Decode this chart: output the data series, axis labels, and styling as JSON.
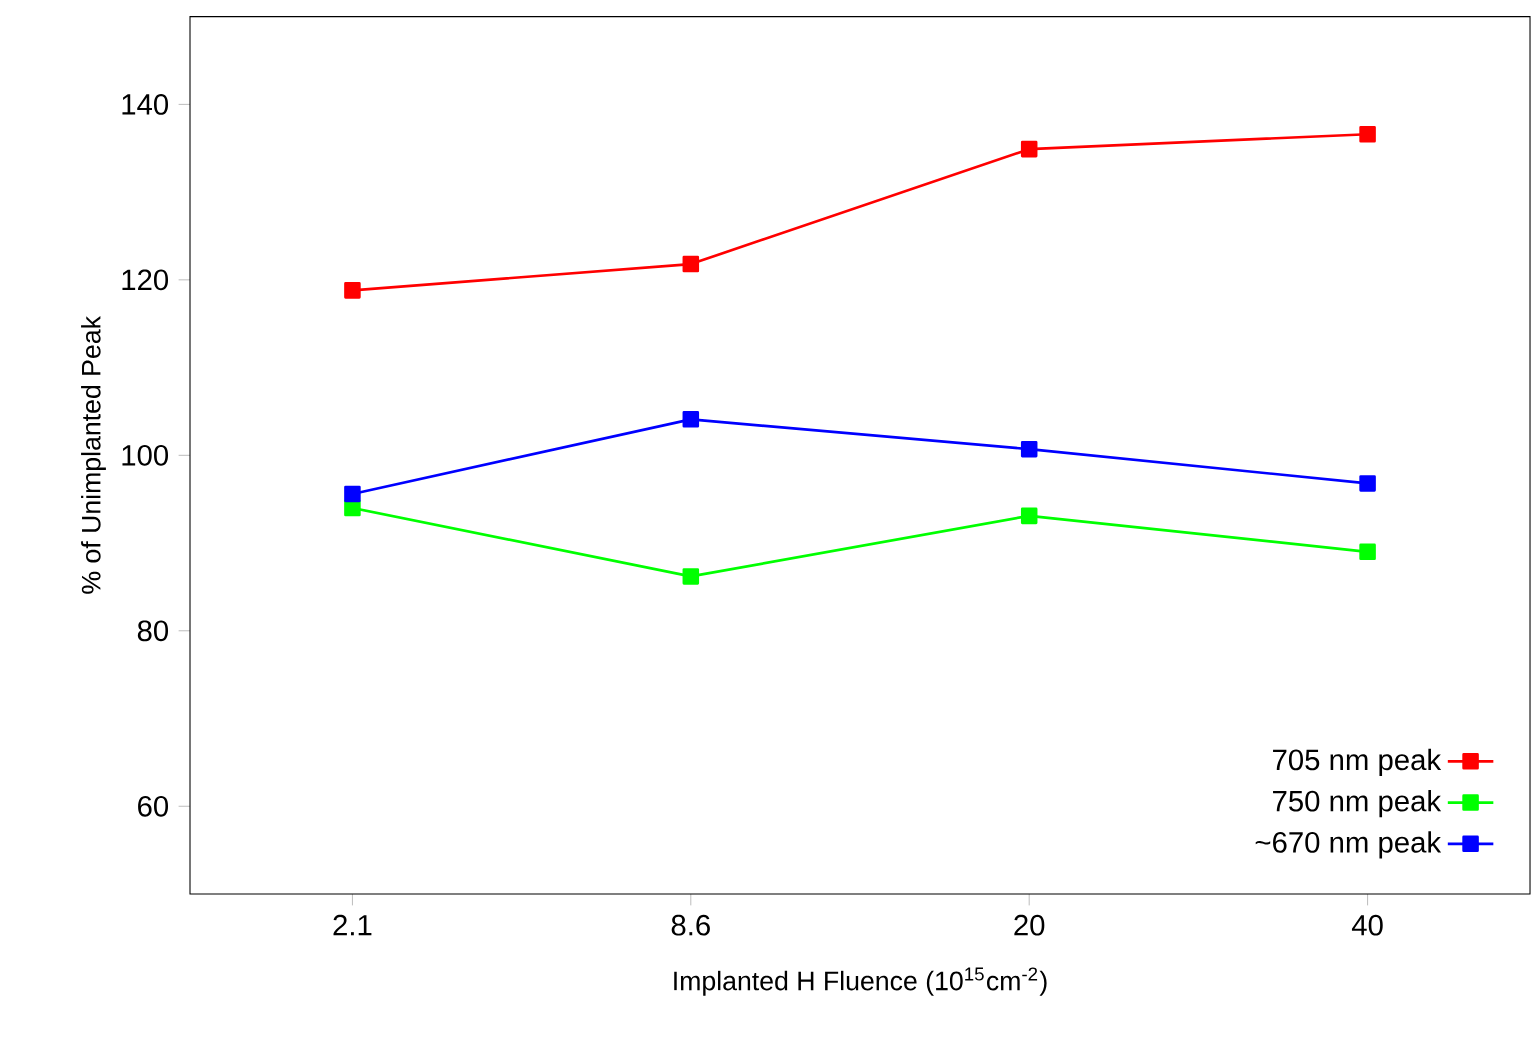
{
  "chart_data": {
    "type": "line",
    "xlabel": "Implanted H Fluence (10$^{15}$cm$^{-2}$)",
    "ylabel": "% of Unimplanted Peak",
    "categories": [
      "2.1",
      "8.6",
      "20",
      "40"
    ],
    "series": [
      {
        "name": "705 nm peak",
        "color": "#ff0000",
        "values": [
          118.8,
          121.8,
          134.9,
          136.6
        ]
      },
      {
        "name": "750 nm peak",
        "color": "#00ff00",
        "values": [
          94.0,
          86.2,
          93.1,
          89.0
        ]
      },
      {
        "name": "~670 nm peak",
        "color": "#0000ff",
        "values": [
          95.6,
          104.1,
          100.7,
          96.8
        ]
      }
    ],
    "ylim": [
      50,
      150
    ],
    "yticks": [
      60,
      80,
      100,
      120,
      140
    ],
    "grid": false,
    "legend": "bottom right",
    "marker": "square",
    "line_style": "solid"
  }
}
